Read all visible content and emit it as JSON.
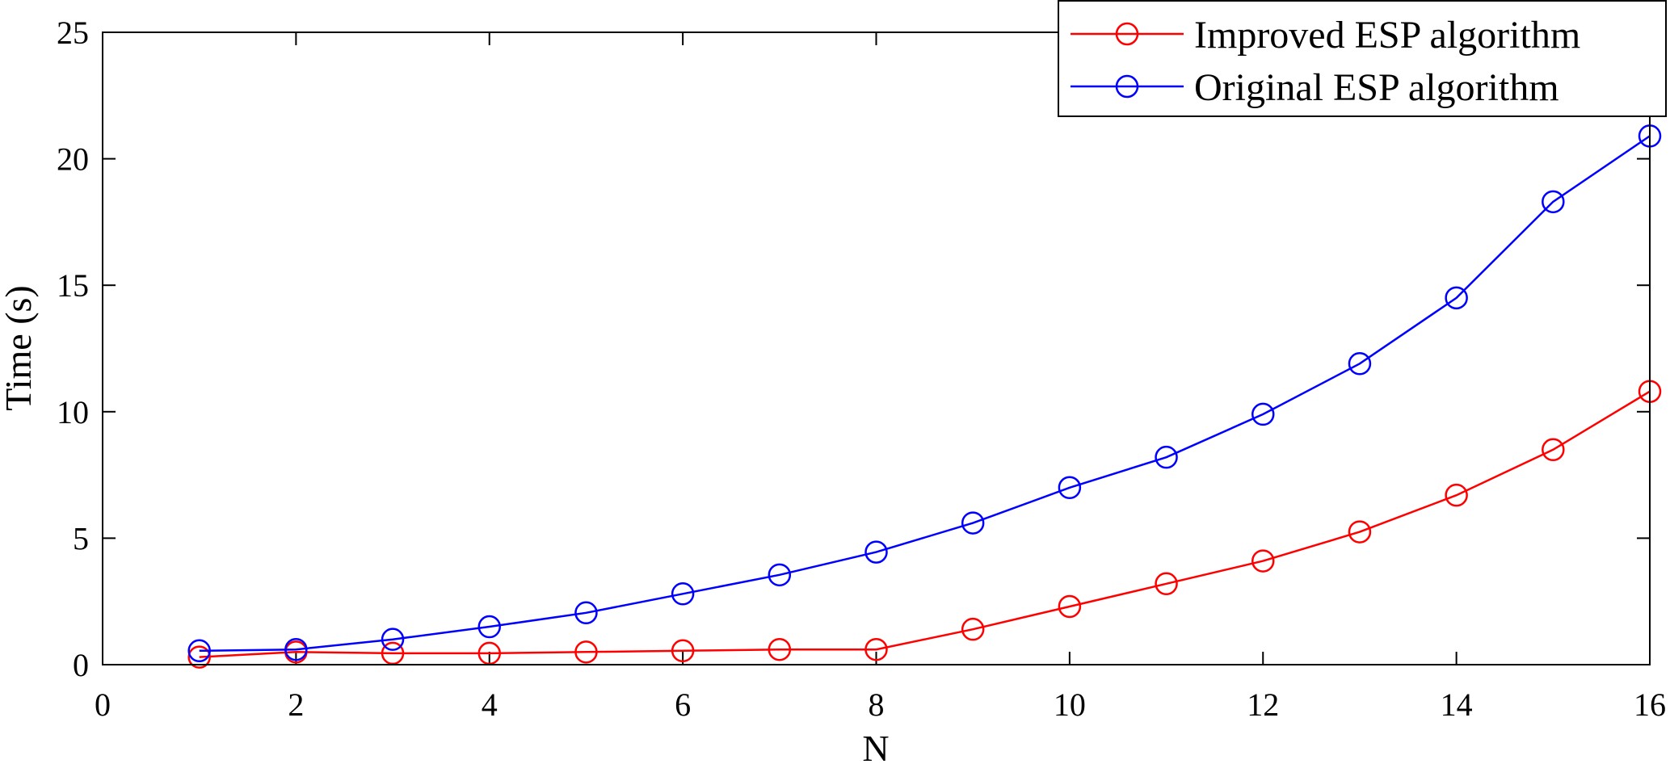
{
  "chart_data": {
    "type": "line",
    "title": "",
    "xlabel": "N",
    "ylabel": "Time (s)",
    "xlim": [
      0,
      16
    ],
    "ylim": [
      0,
      25
    ],
    "xticks": [
      "0",
      "2",
      "4",
      "6",
      "8",
      "10",
      "12",
      "14",
      "16"
    ],
    "yticks": [
      "0",
      "5",
      "10",
      "15",
      "20",
      "25"
    ],
    "grid": false,
    "legend_position": "top-right",
    "x": [
      1,
      2,
      3,
      4,
      5,
      6,
      7,
      8,
      9,
      10,
      11,
      12,
      13,
      14,
      15,
      16
    ],
    "series": [
      {
        "name": "Improved ESP algorithm",
        "color": "#ff0000",
        "marker": "circle",
        "values": [
          0.3,
          0.5,
          0.45,
          0.45,
          0.5,
          0.55,
          0.6,
          0.6,
          1.4,
          2.3,
          3.2,
          4.1,
          5.25,
          6.7,
          8.5,
          10.8
        ]
      },
      {
        "name": "Original ESP algorithm",
        "color": "#0000ff",
        "marker": "circle",
        "values": [
          0.55,
          0.6,
          1.0,
          1.5,
          2.05,
          2.8,
          3.55,
          4.45,
          5.6,
          7.0,
          8.2,
          9.9,
          11.9,
          14.5,
          18.3,
          20.9
        ]
      }
    ]
  }
}
